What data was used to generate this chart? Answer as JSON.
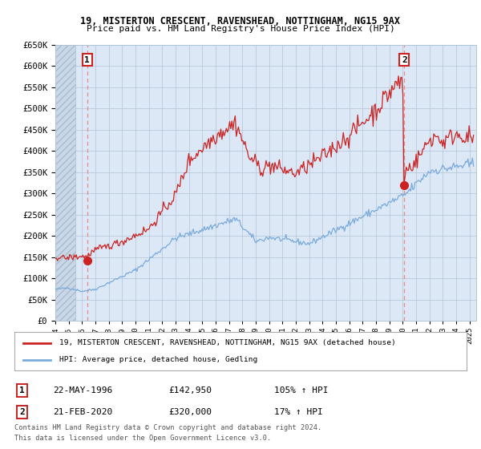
{
  "title": "19, MISTERTON CRESCENT, RAVENSHEAD, NOTTINGHAM, NG15 9AX",
  "subtitle": "Price paid vs. HM Land Registry's House Price Index (HPI)",
  "legend_line1": "19, MISTERTON CRESCENT, RAVENSHEAD, NOTTINGHAM, NG15 9AX (detached house)",
  "legend_line2": "HPI: Average price, detached house, Gedling",
  "sale1_label": "1",
  "sale1_date": "22-MAY-1996",
  "sale1_price": "£142,950",
  "sale1_hpi": "105% ↑ HPI",
  "sale2_label": "2",
  "sale2_date": "21-FEB-2020",
  "sale2_price": "£320,000",
  "sale2_hpi": "17% ↑ HPI",
  "footnote1": "Contains HM Land Registry data © Crown copyright and database right 2024.",
  "footnote2": "This data is licensed under the Open Government Licence v3.0.",
  "red_color": "#cc2222",
  "blue_color": "#7aabdc",
  "dashed_color": "#ee8888",
  "plot_bg_color": "#dce8f5",
  "background_color": "#ffffff",
  "ylim": [
    0,
    650000
  ],
  "xlim_start": 1994.0,
  "xlim_end": 2025.5,
  "sale1_x": 1996.38,
  "sale1_y": 142950,
  "sale2_x": 2020.12,
  "sale2_y": 320000
}
